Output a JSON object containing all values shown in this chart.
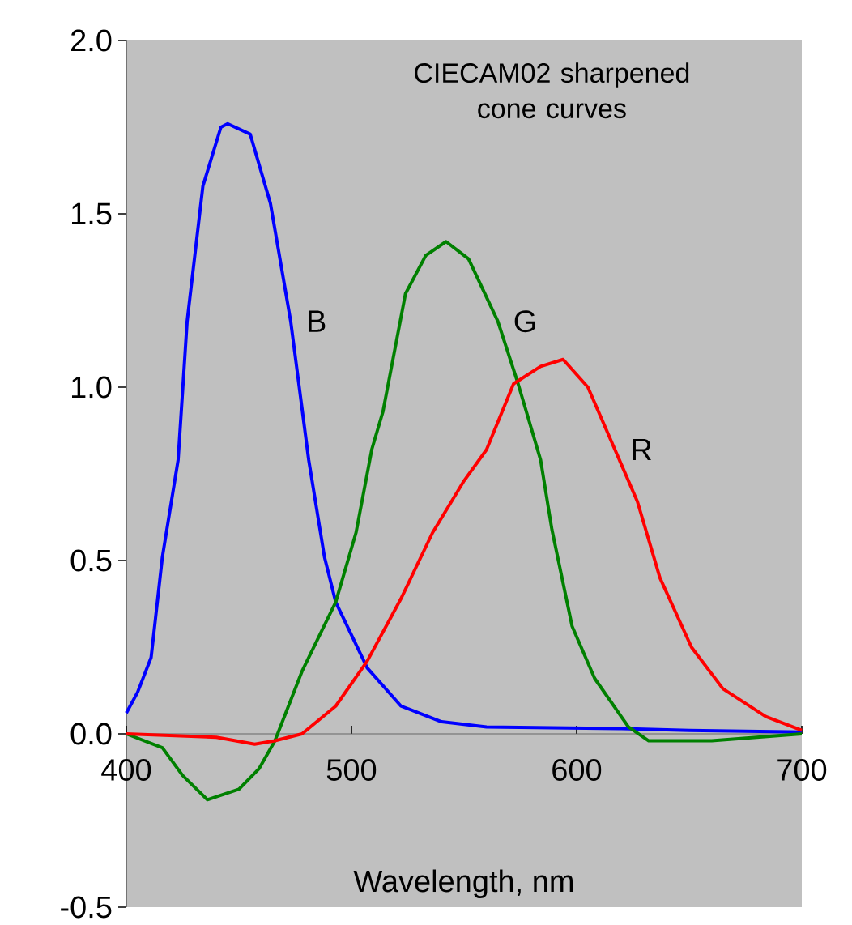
{
  "chart_data": {
    "type": "line",
    "title": "CIECAM02 sharpened cone curves",
    "xlabel": "Wavelength, nm",
    "xlim": [
      400,
      700
    ],
    "ylim": [
      -0.5,
      2.0
    ],
    "xticks": [
      400,
      500,
      600,
      700
    ],
    "yticks": [
      {
        "value": -0.5,
        "label": "-0.5"
      },
      {
        "value": 0,
        "label": "0.0"
      },
      {
        "value": 0.5,
        "label": "0.5"
      },
      {
        "value": 1,
        "label": "1.0"
      },
      {
        "value": 1.5,
        "label": "1.5"
      },
      {
        "value": 2,
        "label": "2.0"
      }
    ],
    "grid": false,
    "legend": false,
    "series": [
      {
        "name": "B",
        "color": "#0000ff",
        "x": [
          400,
          405,
          411,
          416,
          423,
          427,
          434,
          442,
          445,
          455,
          464,
          473,
          481,
          488,
          493,
          507,
          522,
          540,
          560,
          620,
          650,
          700
        ],
        "values": [
          0.06,
          0.12,
          0.22,
          0.51,
          0.79,
          1.19,
          1.58,
          1.75,
          1.76,
          1.73,
          1.53,
          1.19,
          0.79,
          0.51,
          0.38,
          0.19,
          0.08,
          0.035,
          0.02,
          0.015,
          0.01,
          0.005
        ]
      },
      {
        "name": "G",
        "color": "#008000",
        "x": [
          400,
          416,
          425,
          436,
          450,
          459,
          466,
          478,
          493,
          502,
          509,
          514,
          524,
          533,
          542,
          552,
          565,
          574,
          584,
          589,
          598,
          608,
          623,
          632,
          660,
          680,
          700
        ],
        "values": [
          0.0,
          -0.04,
          -0.12,
          -0.19,
          -0.16,
          -0.1,
          -0.02,
          0.18,
          0.38,
          0.58,
          0.82,
          0.93,
          1.27,
          1.38,
          1.42,
          1.37,
          1.19,
          1.01,
          0.79,
          0.59,
          0.31,
          0.16,
          0.02,
          -0.02,
          -0.02,
          -0.01,
          0.0
        ]
      },
      {
        "name": "R",
        "color": "#ff0000",
        "x": [
          400,
          440,
          457,
          466,
          478,
          493,
          507,
          522,
          536,
          550,
          560,
          572,
          584,
          594,
          605,
          617,
          627,
          637,
          651,
          665,
          684,
          700
        ],
        "values": [
          0.0,
          -0.01,
          -0.03,
          -0.02,
          0.0,
          0.08,
          0.21,
          0.39,
          0.58,
          0.73,
          0.82,
          1.01,
          1.06,
          1.08,
          1.0,
          0.82,
          0.67,
          0.45,
          0.25,
          0.13,
          0.05,
          0.01
        ]
      }
    ]
  }
}
